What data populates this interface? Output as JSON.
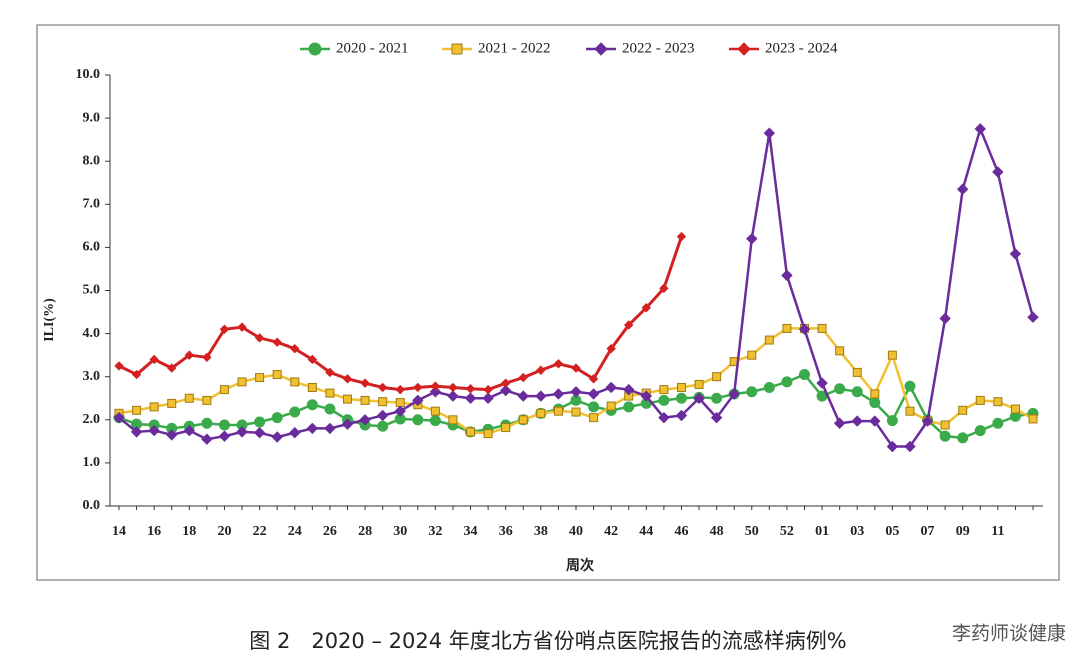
{
  "chart_data": {
    "type": "line",
    "ylabel": "ILI(%)",
    "xlabel": "周次",
    "caption": "图 2　2020 – 2024 年度北方省份哨点医院报告的流感样病例%",
    "watermark": "李药师谈健康",
    "categories": [
      "14",
      null,
      "16",
      null,
      "18",
      null,
      "20",
      null,
      "22",
      null,
      "24",
      null,
      "26",
      null,
      "28",
      null,
      "30",
      null,
      "32",
      null,
      "34",
      null,
      "36",
      null,
      "38",
      null,
      "40",
      null,
      "42",
      null,
      "44",
      null,
      "46",
      null,
      "48",
      null,
      "50",
      null,
      "52",
      null,
      "01",
      null,
      "03",
      null,
      "05",
      null,
      "07",
      null,
      "09",
      null,
      "11",
      null,
      null
    ],
    "ylim": [
      0,
      10
    ],
    "yticks": [
      {
        "value": 0,
        "label": "0.0"
      },
      {
        "value": 1,
        "label": "1.0"
      },
      {
        "value": 2,
        "label": "2.0"
      },
      {
        "value": 3,
        "label": "3.0"
      },
      {
        "value": 4,
        "label": "4.0"
      },
      {
        "value": 5,
        "label": "5.0"
      },
      {
        "value": 6,
        "label": "6.0"
      },
      {
        "value": 7,
        "label": "7.0"
      },
      {
        "value": 8,
        "label": "8.0"
      },
      {
        "value": 9,
        "label": "9.0"
      },
      {
        "value": 10,
        "label": "10.0"
      }
    ],
    "series": [
      {
        "name": "2020 - 2021",
        "color": "#3aaa4a",
        "marker": "circle",
        "values": [
          2.05,
          1.9,
          1.88,
          1.8,
          1.85,
          1.92,
          1.88,
          1.88,
          1.95,
          2.05,
          2.18,
          2.35,
          2.25,
          2.0,
          1.88,
          1.85,
          2.02,
          2.0,
          1.98,
          1.88,
          1.72,
          1.78,
          1.88,
          2.0,
          2.15,
          2.25,
          2.45,
          2.3,
          2.22,
          2.3,
          2.38,
          2.45,
          2.5,
          2.52,
          2.5,
          2.6,
          2.65,
          2.75,
          2.88,
          3.05,
          2.55,
          2.72,
          2.65,
          2.4,
          1.98,
          2.78,
          2.0,
          1.62,
          1.58,
          1.75,
          1.92,
          2.08,
          2.15
        ]
      },
      {
        "name": "2021 - 2022",
        "color": "#f0c030",
        "marker": "square",
        "values": [
          2.15,
          2.22,
          2.3,
          2.38,
          2.5,
          2.45,
          2.7,
          2.88,
          2.98,
          3.05,
          2.88,
          2.75,
          2.62,
          2.48,
          2.45,
          2.42,
          2.4,
          2.35,
          2.2,
          2.0,
          1.72,
          1.68,
          1.82,
          2.0,
          2.15,
          2.2,
          2.18,
          2.05,
          2.32,
          2.55,
          2.62,
          2.7,
          2.75,
          2.82,
          3.0,
          3.35,
          3.5,
          3.85,
          4.12,
          4.12,
          4.12,
          3.6,
          3.1,
          2.6,
          3.5,
          2.2,
          1.98,
          1.88,
          2.22,
          2.45,
          2.42,
          2.25,
          2.02
        ]
      },
      {
        "name": "2022 - 2023",
        "color": "#6a2c9c",
        "marker": "diamond",
        "values": [
          2.05,
          1.72,
          1.75,
          1.65,
          1.75,
          1.55,
          1.62,
          1.72,
          1.7,
          1.6,
          1.7,
          1.8,
          1.8,
          1.9,
          2.0,
          2.1,
          2.2,
          2.45,
          2.65,
          2.55,
          2.5,
          2.5,
          2.68,
          2.55,
          2.55,
          2.6,
          2.65,
          2.6,
          2.75,
          2.7,
          2.55,
          2.05,
          2.1,
          2.5,
          2.05,
          2.6,
          6.2,
          8.65,
          5.35,
          4.1,
          2.85,
          1.92,
          1.97,
          1.97,
          1.38,
          1.38,
          1.97,
          4.35,
          7.35,
          8.75,
          7.75,
          5.85,
          4.38
        ]
      },
      {
        "name": "2023 - 2024",
        "color": "#d42020",
        "marker": "diamond",
        "values": [
          3.25,
          3.05,
          3.4,
          3.2,
          3.5,
          3.45,
          4.1,
          4.15,
          3.9,
          3.8,
          3.65,
          3.4,
          3.1,
          2.95,
          2.85,
          2.75,
          2.7,
          2.75,
          2.78,
          2.75,
          2.72,
          2.7,
          2.85,
          2.98,
          3.15,
          3.3,
          3.2,
          2.95,
          3.65,
          4.2,
          4.6,
          5.05,
          6.25,
          null,
          null,
          null,
          null,
          null,
          null,
          null,
          null,
          null,
          null,
          null,
          null,
          null,
          null,
          null,
          null,
          null,
          null,
          null,
          null
        ]
      }
    ]
  }
}
